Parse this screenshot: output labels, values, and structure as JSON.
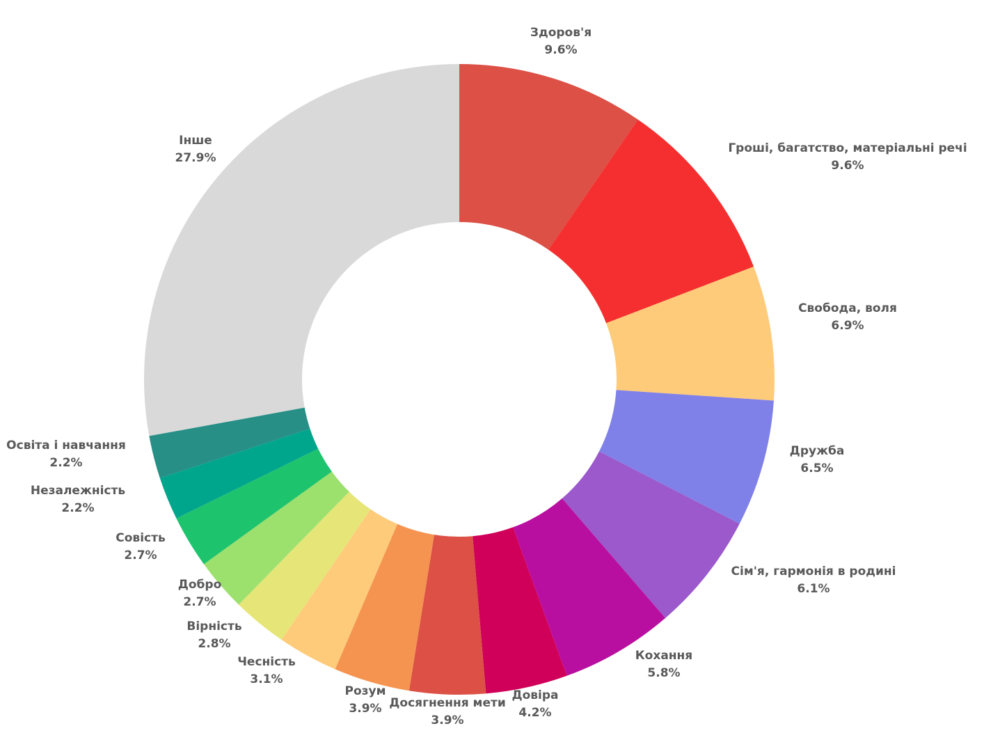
{
  "chart_data": {
    "type": "pie",
    "donut": true,
    "title": "",
    "start_angle_deg": 0,
    "direction": "clockwise",
    "slices": [
      {
        "label": "Здоров'я",
        "value": 9.6,
        "value_label": "9.6%",
        "color": "#dc5046"
      },
      {
        "label": "Гроші, багатство, матеріальні речі",
        "value": 9.6,
        "value_label": "9.6%",
        "color": "#f52f2f"
      },
      {
        "label": "Свобода, воля",
        "value": 6.9,
        "value_label": "6.9%",
        "color": "#fecb7a"
      },
      {
        "label": "Дружба",
        "value": 6.5,
        "value_label": "6.5%",
        "color": "#8081e8"
      },
      {
        "label": "Сім'я, гармонія в родині",
        "value": 6.1,
        "value_label": "6.1%",
        "color": "#9b59cc"
      },
      {
        "label": "Кохання",
        "value": 5.8,
        "value_label": "5.8%",
        "color": "#b90fa0"
      },
      {
        "label": "Довіра",
        "value": 4.2,
        "value_label": "4.2%",
        "color": "#d0005a"
      },
      {
        "label": "Досягнення мети",
        "value": 3.9,
        "value_label": "3.9%",
        "color": "#dc5046"
      },
      {
        "label": "Розум",
        "value": 3.9,
        "value_label": "3.9%",
        "color": "#f59450"
      },
      {
        "label": "Чесність",
        "value": 3.1,
        "value_label": "3.1%",
        "color": "#fecb7a"
      },
      {
        "label": "Вірність",
        "value": 2.8,
        "value_label": "2.8%",
        "color": "#e6e678"
      },
      {
        "label": "Добро",
        "value": 2.7,
        "value_label": "2.7%",
        "color": "#9ce06e"
      },
      {
        "label": "Совість",
        "value": 2.7,
        "value_label": "2.7%",
        "color": "#1ec36e"
      },
      {
        "label": "Незалежність",
        "value": 2.2,
        "value_label": "2.2%",
        "color": "#00a68c"
      },
      {
        "label": "Освіта і навчання",
        "value": 2.2,
        "value_label": "2.2%",
        "color": "#278f86"
      },
      {
        "label": "Інше",
        "value": 27.9,
        "value_label": "27.9%",
        "color": "#d9d9d9"
      }
    ]
  }
}
